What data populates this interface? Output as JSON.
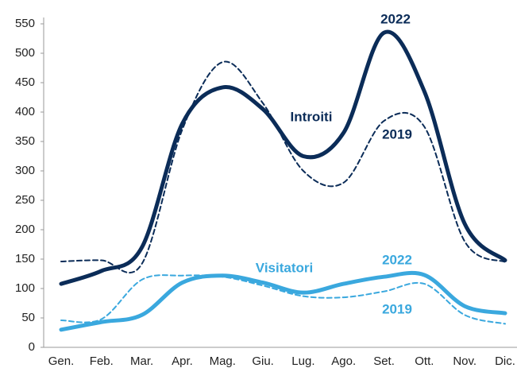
{
  "chart_data": {
    "type": "line",
    "categories": [
      "Gen.",
      "Feb.",
      "Mar.",
      "Apr.",
      "Mag.",
      "Giu.",
      "Lug.",
      "Ago.",
      "Set.",
      "Ott.",
      "Nov.",
      "Dic."
    ],
    "series": [
      {
        "color": "#0b2c58",
        "dash": false,
        "values": [
          108,
          130,
          170,
          380,
          442,
          405,
          325,
          365,
          535,
          435,
          210,
          148
        ]
      },
      {
        "color": "#0b2c58",
        "dash": true,
        "values": [
          146,
          148,
          142,
          370,
          485,
          415,
          300,
          280,
          385,
          375,
          180,
          145
        ]
      },
      {
        "color": "#3aa8de",
        "dash": false,
        "values": [
          30,
          43,
          55,
          110,
          122,
          110,
          93,
          108,
          120,
          123,
          70,
          58
        ]
      },
      {
        "color": "#3aa8de",
        "dash": true,
        "values": [
          46,
          48,
          115,
          122,
          120,
          105,
          87,
          85,
          95,
          108,
          55,
          40
        ]
      }
    ],
    "annotations": [
      {
        "text": "2022",
        "color": "#0b2c58"
      },
      {
        "text": "Introiti",
        "color": "#0b2c58"
      },
      {
        "text": "2019",
        "color": "#0b2c58"
      },
      {
        "text": "Visitatori",
        "color": "#3aa8de"
      },
      {
        "text": "2022",
        "color": "#3aa8de"
      },
      {
        "text": "2019",
        "color": "#3aa8de"
      }
    ],
    "ylim": [
      0,
      550
    ],
    "yticks": [
      0,
      50,
      100,
      150,
      200,
      250,
      300,
      350,
      400,
      450,
      500,
      550
    ],
    "grid": false
  }
}
